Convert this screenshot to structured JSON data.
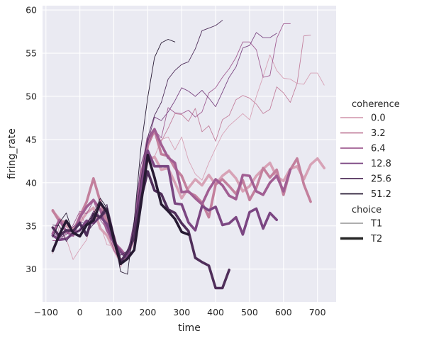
{
  "chart_data": {
    "type": "line",
    "xlabel": "time",
    "ylabel": "firing_rate",
    "xlim": [
      -110,
      755
    ],
    "ylim": [
      26.2,
      60.5
    ],
    "xticks": [
      -100,
      0,
      100,
      200,
      300,
      400,
      500,
      600,
      700
    ],
    "xtick_labels": [
      "−100",
      "0",
      "100",
      "200",
      "300",
      "400",
      "500",
      "600",
      "700"
    ],
    "yticks": [
      30,
      35,
      40,
      45,
      50,
      55,
      60
    ],
    "ytick_labels": [
      "30",
      "35",
      "40",
      "45",
      "50",
      "55",
      "60"
    ],
    "grid": true,
    "legend_position": "right",
    "legend": {
      "hue_title": "coherence",
      "hue_entries": [
        {
          "label": "0.0",
          "color": "#d7a2b6"
        },
        {
          "label": "3.2",
          "color": "#c3809d"
        },
        {
          "label": "6.4",
          "color": "#a15e93"
        },
        {
          "label": "12.8",
          "color": "#7b4682"
        },
        {
          "label": "25.6",
          "color": "#4f2e5a"
        },
        {
          "label": "51.2",
          "color": "#271a33"
        }
      ],
      "size_title": "choice",
      "size_entries": [
        {
          "label": "T1",
          "width": 0.8
        },
        {
          "label": "T2",
          "width": 3.6
        }
      ]
    },
    "series": [
      {
        "coherence": "0.0",
        "choice": "T1",
        "color": "#d7a2b6",
        "width": 0.9,
        "x": [
          -80,
          -60,
          -40,
          -20,
          0,
          20,
          40,
          60,
          80,
          100,
          120,
          140,
          160,
          180,
          200,
          220,
          240,
          260,
          280,
          300,
          320,
          340,
          360,
          380,
          400,
          420,
          440,
          460,
          480,
          500,
          520,
          540,
          560,
          580,
          600,
          620,
          640,
          660,
          680,
          700,
          720
        ],
        "y": [
          31.8,
          35.0,
          33.5,
          31.1,
          32.3,
          33.4,
          36.3,
          35.1,
          32.8,
          32.7,
          30.2,
          32.1,
          34.2,
          40.4,
          42.3,
          43.0,
          45.0,
          45.3,
          43.8,
          45.3,
          42.6,
          41.0,
          40.3,
          42.3,
          44.0,
          45.6,
          46.6,
          47.3,
          48.0,
          47.3,
          50.0,
          52.3,
          54.8,
          53.0,
          52.1,
          52.0,
          51.5,
          51.4,
          52.7,
          52.7,
          51.3
        ]
      },
      {
        "coherence": "0.0",
        "choice": "T2",
        "color": "#d7a2b6",
        "width": 3.6,
        "x": [
          -80,
          -60,
          -40,
          -20,
          0,
          20,
          40,
          60,
          80,
          100,
          120,
          140,
          160,
          180,
          200,
          220,
          240,
          260,
          280,
          300,
          320,
          340,
          360,
          380,
          400,
          420,
          440,
          460,
          480,
          500,
          520,
          540,
          560,
          580,
          600,
          620,
          640,
          660,
          680,
          700,
          720
        ],
        "y": [
          36.7,
          35.8,
          35.0,
          34.7,
          35.4,
          36.5,
          37.1,
          34.7,
          33.9,
          32.3,
          30.8,
          31.4,
          33.8,
          39.3,
          42.6,
          43.0,
          41.5,
          41.7,
          40.0,
          38.2,
          39.4,
          40.4,
          39.7,
          40.9,
          39.8,
          40.8,
          41.4,
          40.5,
          39.0,
          39.6,
          40.8,
          41.6,
          42.3,
          40.7,
          40.2,
          41.6,
          41.9,
          40.4,
          42.1,
          42.8,
          41.7
        ]
      },
      {
        "coherence": "3.2",
        "choice": "T1",
        "color": "#c3809d",
        "width": 0.9,
        "x": [
          -80,
          -60,
          -40,
          -20,
          0,
          20,
          40,
          60,
          80,
          100,
          120,
          140,
          160,
          180,
          200,
          220,
          240,
          260,
          280,
          300,
          320,
          340,
          360,
          380,
          400,
          420,
          440,
          460,
          480,
          500,
          520,
          540,
          560,
          580,
          600,
          620,
          640,
          660,
          680
        ],
        "y": [
          34.1,
          35.4,
          34.9,
          34.1,
          36.5,
          35.0,
          36.0,
          37.5,
          35.3,
          32.5,
          31.2,
          31.5,
          34.1,
          41.4,
          44.8,
          45.7,
          44.8,
          46.3,
          48.0,
          47.9,
          47.1,
          48.6,
          45.9,
          46.6,
          44.8,
          47.3,
          47.8,
          49.6,
          50.1,
          49.8,
          49.1,
          48.0,
          48.5,
          51.1,
          50.4,
          49.3,
          51.5,
          57.0,
          57.1
        ]
      },
      {
        "coherence": "3.2",
        "choice": "T2",
        "color": "#c3809d",
        "width": 3.6,
        "x": [
          -80,
          -60,
          -40,
          -20,
          0,
          20,
          40,
          60,
          80,
          100,
          120,
          140,
          160,
          180,
          200,
          220,
          240,
          260,
          280,
          300,
          320,
          340,
          360,
          380,
          400,
          420,
          440,
          460,
          480,
          500,
          520,
          540,
          560,
          580,
          600,
          620,
          640,
          660,
          680
        ],
        "y": [
          36.8,
          35.5,
          35.5,
          34.3,
          36.1,
          37.8,
          40.5,
          37.8,
          35.5,
          33.8,
          30.9,
          31.5,
          33.6,
          38.8,
          44.3,
          46.1,
          43.3,
          43.1,
          41.7,
          40.8,
          38.9,
          38.5,
          37.7,
          36.0,
          39.8,
          40.4,
          39.6,
          38.7,
          40.3,
          38.0,
          39.4,
          41.7,
          40.6,
          41.5,
          38.6,
          41.5,
          42.8,
          39.8,
          37.8
        ]
      },
      {
        "coherence": "6.4",
        "choice": "T1",
        "color": "#a15e93",
        "width": 0.9,
        "x": [
          -80,
          -60,
          -40,
          -20,
          0,
          20,
          40,
          60,
          80,
          100,
          120,
          140,
          160,
          180,
          200,
          220,
          240,
          260,
          280,
          300,
          320,
          340,
          360,
          380,
          400,
          420,
          440,
          460,
          480,
          500,
          520,
          540,
          560,
          580,
          600,
          620
        ],
        "y": [
          33.3,
          33.3,
          34.2,
          35.1,
          36.7,
          36.4,
          37.9,
          35.7,
          34.6,
          32.2,
          30.9,
          32.2,
          33.8,
          40.3,
          44.4,
          46.1,
          45.2,
          48.7,
          48.1,
          48.0,
          48.4,
          47.6,
          48.2,
          50.4,
          51.0,
          52.2,
          53.2,
          54.5,
          56.3,
          56.3,
          55.4,
          52.2,
          52.4,
          56.7,
          58.4,
          58.4
        ]
      },
      {
        "coherence": "6.4",
        "choice": "T2",
        "color": "#a15e93",
        "width": 3.6,
        "x": [
          -80,
          -60,
          -40,
          -20,
          0,
          20,
          40,
          60,
          80,
          100,
          120,
          140,
          160,
          180,
          200,
          220,
          240,
          260,
          280,
          300,
          320,
          340,
          360,
          380,
          400,
          420,
          440,
          460,
          480,
          500,
          520,
          540,
          560,
          580,
          600,
          620
        ],
        "y": [
          34.1,
          35.7,
          34.3,
          33.9,
          36.0,
          37.2,
          38.0,
          36.9,
          34.5,
          33.1,
          32.3,
          31.3,
          34.7,
          40.5,
          45.1,
          46.2,
          44.4,
          42.9,
          42.3,
          38.9,
          39.0,
          38.2,
          37.5,
          39.2,
          40.4,
          39.7,
          38.5,
          38.1,
          40.9,
          40.8,
          39.0,
          38.6,
          40.0,
          40.8,
          39.0,
          41.5
        ]
      },
      {
        "coherence": "12.8",
        "choice": "T1",
        "color": "#7b4682",
        "width": 0.9,
        "x": [
          -80,
          -60,
          -40,
          -20,
          0,
          20,
          40,
          60,
          80,
          100,
          120,
          140,
          160,
          180,
          200,
          220,
          240,
          260,
          280,
          300,
          320,
          340,
          360,
          380,
          400,
          420,
          440,
          460,
          480,
          500,
          520,
          540,
          560,
          580
        ],
        "y": [
          34.3,
          33.6,
          34.0,
          34.9,
          35.5,
          35.2,
          36.7,
          36.1,
          36.5,
          32.8,
          31.9,
          31.6,
          35.6,
          42.1,
          44.7,
          47.6,
          47.2,
          48.2,
          49.5,
          51.0,
          50.6,
          50.0,
          50.7,
          49.8,
          48.8,
          50.5,
          52.2,
          53.4,
          55.6,
          55.9,
          57.4,
          56.8,
          56.8,
          57.3
        ]
      },
      {
        "coherence": "12.8",
        "choice": "T2",
        "color": "#7b4682",
        "width": 3.6,
        "x": [
          -80,
          -60,
          -40,
          -20,
          0,
          20,
          40,
          60,
          80,
          100,
          120,
          140,
          160,
          180,
          200,
          220,
          240,
          260,
          280,
          300,
          320,
          340,
          360,
          380,
          400,
          420,
          440,
          460,
          480,
          500,
          520,
          540,
          560,
          580
        ],
        "y": [
          33.9,
          33.4,
          33.5,
          34.1,
          34.5,
          35.6,
          35.3,
          36.1,
          35.2,
          33.1,
          32.0,
          31.2,
          34.4,
          39.5,
          43.7,
          41.9,
          41.9,
          41.9,
          37.6,
          37.5,
          35.4,
          34.5,
          37.3,
          36.8,
          37.2,
          35.1,
          35.3,
          36.0,
          34.0,
          36.6,
          37.0,
          34.7,
          36.5,
          35.7
        ]
      },
      {
        "coherence": "25.6",
        "choice": "T1",
        "color": "#4f2e5a",
        "width": 0.9,
        "x": [
          -80,
          -60,
          -40,
          -20,
          0,
          20,
          40,
          60,
          80,
          100,
          120,
          140,
          160,
          180,
          200,
          220,
          240,
          260,
          280,
          300,
          320,
          340,
          360,
          380,
          400,
          420
        ],
        "y": [
          35.1,
          35.0,
          33.2,
          34.4,
          35.5,
          34.2,
          35.2,
          36.2,
          37.5,
          33.1,
          31.6,
          32.1,
          34.6,
          40.4,
          45.3,
          47.8,
          49.3,
          52.0,
          53.0,
          53.7,
          54.0,
          55.5,
          57.6,
          57.9,
          58.2,
          58.8
        ]
      },
      {
        "coherence": "25.6",
        "choice": "T2",
        "color": "#4f2e5a",
        "width": 3.6,
        "x": [
          -80,
          -60,
          -40,
          -20,
          0,
          20,
          40,
          60,
          80,
          100,
          120,
          140,
          160,
          180,
          200,
          220,
          240,
          260,
          280,
          300,
          320,
          340,
          360,
          380,
          400,
          420,
          440
        ],
        "y": [
          34.8,
          33.8,
          34.5,
          34.4,
          35.3,
          33.9,
          36.4,
          36.0,
          37.0,
          33.7,
          30.8,
          32.0,
          33.6,
          38.1,
          41.3,
          39.1,
          38.7,
          36.9,
          36.5,
          35.3,
          34.4,
          31.3,
          30.8,
          30.4,
          27.8,
          27.8,
          29.9
        ]
      },
      {
        "coherence": "51.2",
        "choice": "T1",
        "color": "#271a33",
        "width": 0.9,
        "x": [
          -80,
          -60,
          -40,
          -20,
          0,
          20,
          40,
          60,
          80,
          100,
          120,
          140,
          160,
          180,
          200,
          220,
          240,
          260,
          280
        ],
        "y": [
          33.7,
          35.4,
          36.5,
          34.1,
          34.5,
          35.3,
          36.3,
          38.2,
          37.1,
          34.0,
          29.7,
          29.4,
          35.5,
          44.1,
          49.9,
          54.5,
          56.2,
          56.6,
          56.3
        ]
      },
      {
        "coherence": "51.2",
        "choice": "T2",
        "color": "#271a33",
        "width": 3.6,
        "x": [
          -80,
          -60,
          -40,
          -20,
          0,
          20,
          40,
          60,
          80,
          100,
          120,
          140,
          160,
          180,
          200,
          220,
          240,
          260,
          280,
          300,
          320
        ],
        "y": [
          32.1,
          34.0,
          35.6,
          34.2,
          33.8,
          35.1,
          35.6,
          37.7,
          36.6,
          33.4,
          30.6,
          31.2,
          32.2,
          37.5,
          43.2,
          40.6,
          37.5,
          36.7,
          35.8,
          34.3,
          34.0
        ]
      }
    ]
  }
}
